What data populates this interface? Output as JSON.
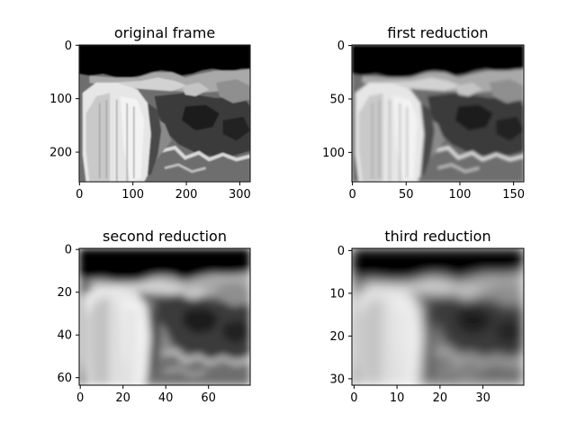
{
  "chart_data": [
    {
      "type": "image",
      "title": "original frame",
      "xlabel": "",
      "ylabel": "",
      "xlim": [
        0,
        319
      ],
      "ylim": [
        255,
        0
      ],
      "xticks": [
        0,
        100,
        200,
        300
      ],
      "yticks": [
        0,
        100,
        200
      ],
      "image_size": {
        "width": 320,
        "height": 256
      },
      "colormap": "gray",
      "content": "grayscale rendered terrain landscape frame"
    },
    {
      "type": "image",
      "title": "first reduction",
      "xlabel": "",
      "ylabel": "",
      "xlim": [
        0,
        159
      ],
      "ylim": [
        127,
        0
      ],
      "xticks": [
        0,
        50,
        100,
        150
      ],
      "yticks": [
        0,
        50,
        100
      ],
      "image_size": {
        "width": 160,
        "height": 128
      },
      "colormap": "gray",
      "content": "grayscale rendered terrain landscape frame"
    },
    {
      "type": "image",
      "title": "second reduction",
      "xlabel": "",
      "ylabel": "",
      "xlim": [
        0,
        79
      ],
      "ylim": [
        63,
        0
      ],
      "xticks": [
        0,
        20,
        40,
        60
      ],
      "yticks": [
        0,
        20,
        40,
        60
      ],
      "image_size": {
        "width": 80,
        "height": 64
      },
      "colormap": "gray",
      "content": "grayscale rendered terrain landscape frame"
    },
    {
      "type": "image",
      "title": "third reduction",
      "xlabel": "",
      "ylabel": "",
      "xlim": [
        0,
        39
      ],
      "ylim": [
        31,
        0
      ],
      "xticks": [
        0,
        10,
        20,
        30
      ],
      "yticks": [
        0,
        10,
        20,
        30
      ],
      "image_size": {
        "width": 40,
        "height": 32
      },
      "colormap": "gray",
      "content": "grayscale rendered terrain landscape frame"
    }
  ]
}
